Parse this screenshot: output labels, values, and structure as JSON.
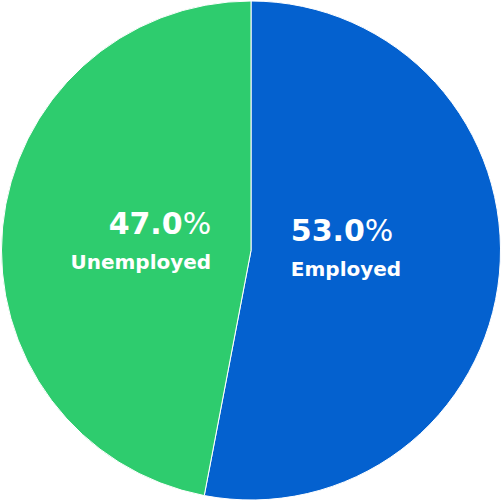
{
  "chart_data": {
    "type": "pie",
    "categories": [
      "Employed",
      "Unemployed"
    ],
    "values": [
      53.0,
      47.0
    ],
    "value_labels": [
      "53.0%",
      "47.0%"
    ],
    "colors": [
      "#0461cf",
      "#2ecc6e"
    ],
    "data_labels": true
  }
}
